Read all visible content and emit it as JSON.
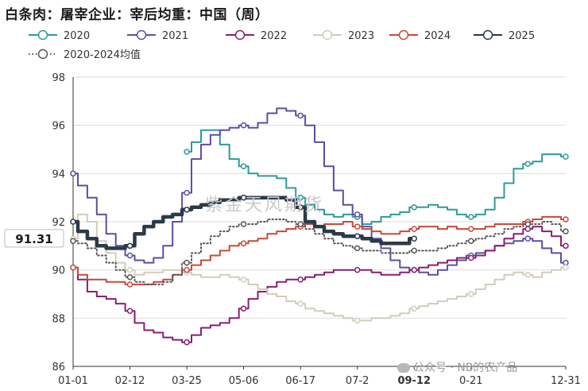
{
  "title": "白条肉：屠宰企业：宰后均重：中国（周）",
  "watermark": "紫金天风期货",
  "footer_watermark": "公众号 · NB的农产品",
  "chart_data": {
    "type": "line",
    "ylim": [
      86,
      98
    ],
    "yticks": [
      86,
      88,
      90,
      92,
      94,
      96,
      98
    ],
    "xtick_labels": [
      "01-01",
      "02-12",
      "03-25",
      "05-06",
      "06-17",
      "07-2",
      "09-12",
      "0-21",
      "12-31"
    ],
    "xtick_weeks": [
      0,
      6,
      12,
      18,
      24,
      30,
      36,
      42,
      52
    ],
    "highlight_value_label": "91.31",
    "highlight_x_label": "09-12",
    "legend_position": "top",
    "series": [
      {
        "name": "2020",
        "color": "#2e9a9a",
        "dash": false,
        "bold": false,
        "x": [
          12,
          13,
          14,
          15,
          16,
          17,
          18,
          19,
          20,
          21,
          22,
          23,
          24,
          25,
          26,
          27,
          28,
          29,
          30,
          31,
          32,
          33,
          34,
          35,
          36,
          37,
          38,
          39,
          40,
          41,
          42,
          43,
          44,
          45,
          46,
          47,
          48,
          49,
          50,
          51,
          52
        ],
        "values": [
          94.9,
          95.3,
          95.8,
          95.8,
          95.2,
          94.6,
          94.3,
          94.0,
          93.9,
          93.9,
          93.8,
          93.4,
          93.0,
          92.7,
          92.5,
          92.3,
          92.2,
          92.3,
          92.2,
          91.9,
          92.0,
          92.2,
          92.3,
          92.4,
          92.6,
          92.6,
          92.7,
          92.6,
          92.5,
          92.3,
          92.2,
          92.3,
          92.5,
          93.0,
          93.6,
          94.2,
          94.4,
          94.5,
          94.8,
          94.8,
          94.7
        ]
      },
      {
        "name": "2021",
        "color": "#5a4fa2",
        "dash": false,
        "bold": false,
        "x": [
          0,
          1,
          2,
          3,
          4,
          5,
          6,
          7,
          8,
          9,
          10,
          11,
          12,
          13,
          14,
          15,
          16,
          17,
          18,
          19,
          20,
          21,
          22,
          23,
          24,
          25,
          26,
          27,
          28,
          29,
          30,
          31,
          32,
          33,
          34,
          35,
          36,
          37,
          38,
          39,
          40,
          41,
          42,
          43,
          44,
          45,
          46,
          47,
          48,
          49,
          50,
          51,
          52
        ],
        "values": [
          94.0,
          93.5,
          93.0,
          92.3,
          91.5,
          91.0,
          90.6,
          90.4,
          90.3,
          90.5,
          91.0,
          92.0,
          93.2,
          94.6,
          95.2,
          95.6,
          95.8,
          95.9,
          96.0,
          95.9,
          96.1,
          96.5,
          96.7,
          96.6,
          96.4,
          96.0,
          95.3,
          94.3,
          93.3,
          92.7,
          92.3,
          91.8,
          91.3,
          90.9,
          90.4,
          90.1,
          90.0,
          89.9,
          89.8,
          90.0,
          90.2,
          90.4,
          90.6,
          90.7,
          90.8,
          91.0,
          91.1,
          91.2,
          91.3,
          91.2,
          90.9,
          90.7,
          90.3
        ]
      },
      {
        "name": "2022",
        "color": "#8a1f6e",
        "dash": false,
        "bold": false,
        "x": [
          0,
          1,
          2,
          3,
          4,
          5,
          6,
          7,
          8,
          9,
          10,
          11,
          12,
          13,
          14,
          15,
          16,
          17,
          18,
          19,
          20,
          21,
          22,
          23,
          24,
          25,
          26,
          27,
          28,
          29,
          30,
          31,
          32,
          33,
          34,
          35,
          36,
          37,
          38,
          39,
          40,
          41,
          42,
          43,
          44,
          45,
          46,
          47,
          48,
          49,
          50,
          51,
          52
        ],
        "values": [
          90.1,
          89.6,
          89.1,
          88.9,
          88.8,
          88.6,
          88.3,
          87.8,
          87.5,
          87.4,
          87.2,
          87.1,
          87.0,
          87.3,
          87.6,
          87.7,
          87.8,
          88.0,
          88.4,
          88.8,
          89.1,
          89.3,
          89.5,
          89.6,
          89.6,
          89.7,
          89.8,
          89.9,
          90.0,
          90.0,
          90.0,
          90.0,
          89.9,
          89.8,
          89.8,
          89.9,
          90.0,
          90.1,
          90.2,
          90.3,
          90.4,
          90.5,
          90.5,
          90.6,
          90.8,
          91.0,
          91.3,
          91.5,
          91.7,
          91.8,
          91.6,
          91.4,
          91.0
        ]
      },
      {
        "name": "2023",
        "color": "#d2ccbc",
        "dash": false,
        "bold": false,
        "x": [
          0,
          1,
          2,
          3,
          4,
          5,
          6,
          7,
          8,
          9,
          10,
          11,
          12,
          13,
          14,
          15,
          16,
          17,
          18,
          19,
          20,
          21,
          22,
          23,
          24,
          25,
          26,
          27,
          28,
          29,
          30,
          31,
          32,
          33,
          34,
          35,
          36,
          37,
          38,
          39,
          40,
          41,
          42,
          43,
          44,
          45,
          46,
          47,
          48,
          49,
          50,
          51,
          52
        ],
        "values": [
          91.3,
          92.3,
          92.0,
          91.2,
          90.7,
          90.3,
          90.0,
          89.8,
          89.9,
          89.9,
          90.0,
          90.0,
          89.9,
          89.8,
          89.7,
          89.7,
          89.8,
          89.7,
          89.6,
          89.4,
          89.2,
          89.0,
          88.9,
          88.7,
          88.6,
          88.4,
          88.3,
          88.2,
          88.1,
          88.0,
          87.9,
          87.9,
          88.0,
          88.0,
          88.1,
          88.2,
          88.4,
          88.5,
          88.6,
          88.7,
          88.8,
          88.9,
          89.0,
          89.2,
          89.4,
          89.6,
          89.8,
          89.9,
          89.8,
          89.7,
          89.9,
          90.0,
          90.1
        ]
      },
      {
        "name": "2024",
        "color": "#c9483b",
        "dash": false,
        "bold": false,
        "x": [
          0,
          1,
          2,
          3,
          4,
          5,
          6,
          7,
          8,
          9,
          10,
          11,
          12,
          13,
          14,
          15,
          16,
          17,
          18,
          19,
          20,
          21,
          22,
          23,
          24,
          25,
          26,
          27,
          28,
          29,
          30,
          31,
          32,
          33,
          34,
          35,
          36,
          37,
          38,
          39,
          40,
          41,
          42,
          43,
          44,
          45,
          46,
          47,
          48,
          49,
          50,
          51,
          52
        ],
        "values": [
          90.1,
          89.8,
          89.6,
          89.6,
          89.5,
          89.5,
          89.4,
          89.4,
          89.4,
          89.5,
          89.6,
          89.8,
          90.0,
          90.2,
          90.4,
          90.6,
          90.8,
          91.0,
          91.1,
          91.2,
          91.3,
          91.5,
          91.6,
          91.7,
          91.8,
          91.9,
          91.8,
          91.9,
          91.9,
          92.0,
          91.8,
          91.7,
          91.6,
          91.5,
          91.5,
          91.6,
          91.7,
          91.8,
          91.8,
          91.7,
          91.8,
          91.7,
          91.7,
          91.7,
          91.8,
          91.9,
          91.9,
          91.9,
          92.0,
          92.1,
          92.2,
          92.2,
          92.1
        ]
      },
      {
        "name": "2025",
        "color": "#2b3a48",
        "dash": false,
        "bold": true,
        "x": [
          0,
          1,
          2,
          3,
          4,
          5,
          6,
          7,
          8,
          9,
          10,
          11,
          12,
          13,
          14,
          15,
          16,
          17,
          18,
          19,
          20,
          21,
          22,
          23,
          24,
          25,
          26,
          27,
          28,
          29,
          30,
          31,
          32,
          33,
          34,
          35,
          36
        ],
        "values": [
          92.0,
          91.6,
          91.3,
          91.0,
          90.9,
          90.9,
          91.0,
          91.5,
          91.8,
          92.0,
          92.2,
          92.3,
          92.5,
          92.6,
          92.7,
          92.8,
          92.9,
          92.9,
          93.0,
          93.0,
          93.0,
          93.0,
          93.0,
          92.9,
          92.6,
          92.0,
          91.8,
          91.6,
          91.5,
          91.4,
          91.4,
          91.3,
          91.2,
          91.1,
          91.1,
          91.1,
          91.3
        ]
      },
      {
        "name": "2020-2024均值",
        "color": "#555555",
        "dash": true,
        "bold": false,
        "x": [
          0,
          1,
          2,
          3,
          4,
          5,
          6,
          7,
          8,
          9,
          10,
          11,
          12,
          13,
          14,
          15,
          16,
          17,
          18,
          19,
          20,
          21,
          22,
          23,
          24,
          25,
          26,
          27,
          28,
          29,
          30,
          31,
          32,
          33,
          34,
          35,
          36,
          37,
          38,
          39,
          40,
          41,
          42,
          43,
          44,
          45,
          46,
          47,
          48,
          49,
          50,
          51,
          52
        ],
        "values": [
          91.2,
          91.1,
          90.9,
          90.6,
          90.3,
          90.0,
          89.7,
          89.5,
          89.4,
          89.4,
          89.5,
          89.8,
          90.3,
          90.7,
          91.1,
          91.4,
          91.6,
          91.8,
          91.9,
          91.9,
          92.0,
          92.1,
          92.1,
          92.0,
          91.9,
          91.7,
          91.5,
          91.3,
          91.1,
          91.0,
          90.9,
          90.8,
          90.8,
          90.7,
          90.7,
          90.7,
          90.8,
          90.8,
          90.8,
          90.9,
          91.0,
          91.1,
          91.2,
          91.3,
          91.4,
          91.5,
          91.7,
          91.8,
          91.9,
          91.9,
          92.0,
          91.9,
          91.6
        ]
      }
    ]
  }
}
